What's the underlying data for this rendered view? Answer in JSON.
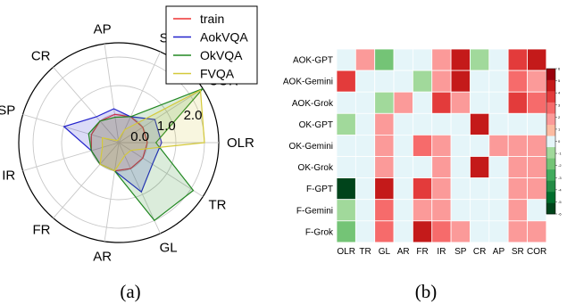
{
  "panel_labels": [
    "(a)",
    "(b)"
  ],
  "chart_data": [
    {
      "type": "radar",
      "axes": [
        "OLR",
        "TR",
        "GL",
        "AR",
        "FR",
        "IR",
        "SP",
        "CR",
        "AP",
        "SR",
        "COR"
      ],
      "radial_ticks": [
        "0.0",
        "1.0",
        "2.0"
      ],
      "rlim": [
        -1,
        2.5
      ],
      "grid": true,
      "legend_placement": "top-right",
      "series": [
        {
          "name": "train",
          "color": "#ee3333",
          "values": [
            0.0,
            0.0,
            0.0,
            0.0,
            0.0,
            0.0,
            0.0,
            0.0,
            0.0,
            0.0,
            0.0
          ]
        },
        {
          "name": "AokVQA",
          "color": "#2222cc",
          "values": [
            0.5,
            0.4,
            0.9,
            0.0,
            0.0,
            0.0,
            1.0,
            0.2,
            0.2,
            0.0,
            0.5
          ]
        },
        {
          "name": "OkVQA",
          "color": "#228822",
          "values": [
            0.3,
            2.1,
            2.0,
            0.0,
            0.0,
            0.0,
            0.1,
            0.0,
            -0.1,
            0.0,
            2.5
          ]
        },
        {
          "name": "FVQA",
          "color": "#d4c93a",
          "values": [
            2.0,
            -0.5,
            -0.5,
            0.0,
            0.0,
            -0.4,
            -0.4,
            -0.9,
            -0.9,
            -0.5,
            2.4
          ]
        }
      ]
    },
    {
      "type": "heatmap",
      "rows": [
        "AOK-GPT",
        "AOK-Gemini",
        "AOK-Grok",
        "OK-GPT",
        "OK-Gemini",
        "OK-Grok",
        "F-GPT",
        "F-Gemini",
        "F-Grok"
      ],
      "columns": [
        "OLR",
        "TR",
        "GL",
        "AR",
        "FR",
        "IR",
        "SP",
        "CR",
        "AP",
        "SR",
        "COR"
      ],
      "values": [
        [
          0,
          2,
          -2,
          0,
          0,
          2,
          5,
          -1,
          0,
          4,
          5
        ],
        [
          4,
          0,
          0,
          0,
          -1,
          2,
          5,
          0,
          0,
          3,
          2
        ],
        [
          0,
          0,
          -1,
          2,
          0,
          4,
          2,
          0,
          0,
          4,
          3
        ],
        [
          -1,
          0,
          2,
          0,
          0,
          0,
          0,
          5,
          0,
          0,
          0
        ],
        [
          0,
          0,
          2,
          0,
          3,
          2,
          0,
          0,
          2,
          2,
          2
        ],
        [
          0,
          0,
          2,
          0,
          0,
          2,
          0,
          5,
          0,
          2,
          2
        ],
        [
          -6,
          0,
          5,
          0,
          4,
          2,
          0,
          0,
          0,
          2,
          2
        ],
        [
          -1,
          0,
          3,
          0,
          2,
          2,
          0,
          0,
          0,
          2,
          0
        ],
        [
          -2,
          0,
          3,
          0,
          5,
          3,
          2,
          0,
          0,
          2,
          2
        ]
      ],
      "vlim": [
        -6,
        6
      ],
      "colorbar_ticks": [
        "-6",
        "-5",
        "-4",
        "-3",
        "-2",
        "-1",
        "0",
        "1",
        "2",
        "3",
        "4",
        "5",
        "6"
      ],
      "colormap_colors": [
        "#00441b",
        "#006d2c",
        "#238b45",
        "#41ab5d",
        "#74c476",
        "#a1d99b",
        "#e5f5f9",
        "#fcbba1",
        "#fb9a99",
        "#f66b6b",
        "#e33b3b",
        "#c41a1a",
        "#99000d"
      ]
    }
  ]
}
